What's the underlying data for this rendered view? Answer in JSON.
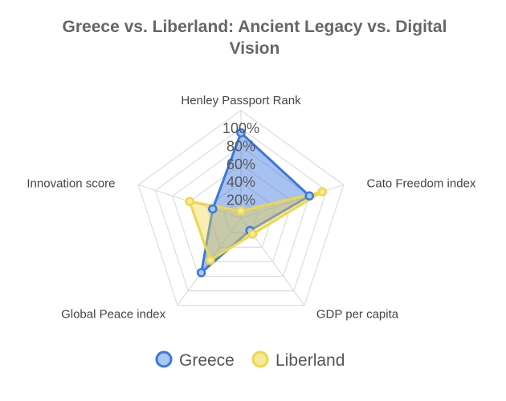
{
  "chart_data": {
    "type": "radar",
    "title_lines": [
      "Greece vs. Liberland: Ancient Legacy vs. Digital",
      "Vision"
    ],
    "axes": [
      "Henley Passport Rank",
      "Cato Freedom index",
      "GDP per capita",
      "Global Peace index",
      "Innovation score"
    ],
    "tick_labels": [
      "20%",
      "40%",
      "60%",
      "80%",
      "100%"
    ],
    "tick_values": [
      20,
      40,
      60,
      80,
      100
    ],
    "rmax": 100,
    "grid": true,
    "legend_position": "bottom",
    "series": [
      {
        "name": "Greece",
        "values": [
          95,
          80,
          17,
          75,
          33
        ],
        "stroke": "#3b78e0",
        "fill": "rgba(59,120,224,0.45)",
        "point_fill": "#a9c8f5"
      },
      {
        "name": "Liberland",
        "values": [
          8,
          95,
          22,
          58,
          60
        ],
        "stroke": "#f0d64a",
        "fill": "rgba(240,214,74,0.42)",
        "point_fill": "#f6e99a"
      }
    ]
  }
}
